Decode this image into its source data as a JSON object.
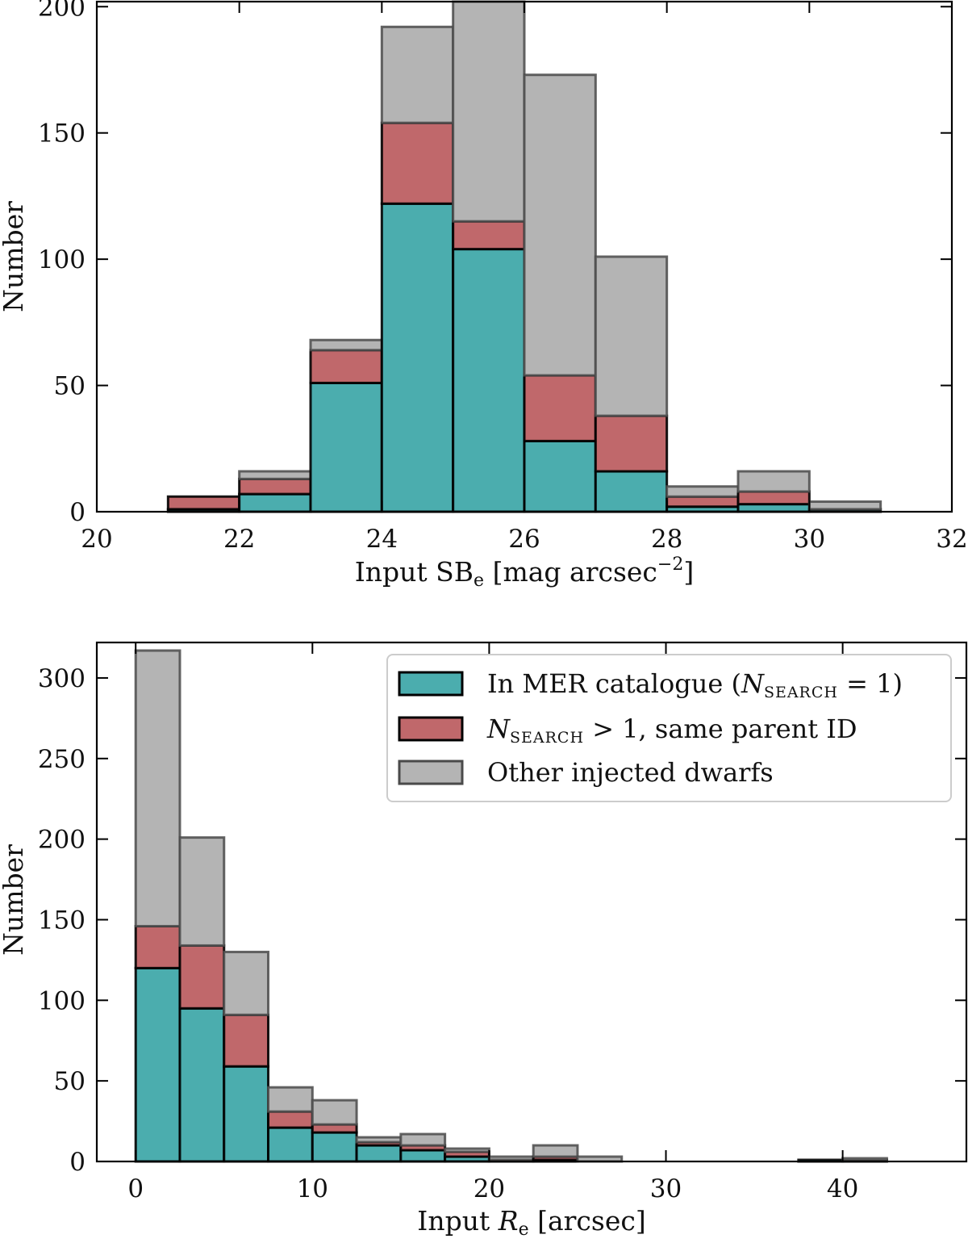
{
  "colors": {
    "in_mer": "#4badae",
    "multi": "#c0686b",
    "other": "#b4b4b4",
    "edge": "#000000",
    "other_edge": "#4a4a4a"
  },
  "chart_data": [
    {
      "type": "bar",
      "stacked": true,
      "title": "",
      "xlabel": "Input SB",
      "xlabel_sub": "e",
      "xlabel_unit_prefix": " [mag arcsec",
      "xlabel_unit_sup": "−2",
      "xlabel_unit_suffix": "]",
      "ylabel": "Number",
      "xlim": [
        20,
        32
      ],
      "ylim": [
        0,
        202
      ],
      "xticks": [
        20,
        22,
        24,
        26,
        28,
        30,
        32
      ],
      "xtick_labels": [
        "20",
        "22",
        "24",
        "26",
        "28",
        "30",
        "32"
      ],
      "yticks": [
        0,
        50,
        100,
        150,
        200
      ],
      "ytick_labels": [
        "0",
        "50",
        "100",
        "150",
        "200"
      ],
      "bin_edges": [
        21,
        22,
        23,
        24,
        25,
        26,
        27,
        28,
        29,
        30,
        31
      ],
      "series": [
        {
          "name": "In MER catalogue (N_SEARCH = 1)",
          "values": [
            1,
            7,
            51,
            122,
            104,
            28,
            16,
            2,
            3,
            1
          ]
        },
        {
          "name": "N_SEARCH > 1, same parent ID",
          "values": [
            5,
            6,
            13,
            32,
            11,
            26,
            22,
            4,
            5,
            0
          ]
        },
        {
          "name": "Other injected dwarfs",
          "values": [
            0,
            3,
            4,
            38,
            87,
            119,
            63,
            4,
            8,
            3
          ]
        }
      ]
    },
    {
      "type": "bar",
      "stacked": true,
      "title": "",
      "xlabel": "Input ",
      "xlabel_var": "R",
      "xlabel_sub": "e",
      "xlabel_unit": " [arcsec]",
      "ylabel": "Number",
      "xlim": [
        -2.2,
        47
      ],
      "ylim": [
        0,
        322
      ],
      "xticks": [
        0,
        10,
        20,
        30,
        40
      ],
      "xtick_labels": [
        "0",
        "10",
        "20",
        "30",
        "40"
      ],
      "yticks": [
        0,
        50,
        100,
        150,
        200,
        250,
        300
      ],
      "ytick_labels": [
        "0",
        "50",
        "100",
        "150",
        "200",
        "250",
        "300"
      ],
      "bin_edges": [
        0,
        2.5,
        5,
        7.5,
        10,
        12.5,
        15,
        17.5,
        20,
        22.5,
        25,
        27.5,
        30,
        32.5,
        35,
        37.5,
        40,
        42.5,
        45
      ],
      "series": [
        {
          "name": "In MER catalogue (N_SEARCH = 1)",
          "values": [
            120,
            95,
            59,
            21,
            18,
            10,
            7,
            3,
            0,
            1,
            0,
            0,
            0,
            0,
            0,
            1,
            1,
            0
          ]
        },
        {
          "name": "N_SEARCH > 1, same parent ID",
          "values": [
            26,
            39,
            32,
            10,
            5,
            2,
            3,
            3,
            1,
            2,
            0,
            0,
            0,
            0,
            0,
            0,
            0,
            0
          ]
        },
        {
          "name": "Other injected dwarfs",
          "values": [
            171,
            67,
            39,
            15,
            15,
            3,
            7,
            2,
            2,
            7,
            3,
            0,
            0,
            0,
            0,
            0,
            1,
            0
          ]
        }
      ],
      "legend": {
        "placement": "top-right",
        "entries": [
          {
            "main": "In MER catalogue (",
            "var": "N",
            "sub": "SEARCH",
            "tail": " = 1)"
          },
          {
            "main": "",
            "var": "N",
            "sub": "SEARCH",
            "tail": " > 1, same parent ID"
          },
          {
            "main": "Other injected dwarfs",
            "var": "",
            "sub": "",
            "tail": ""
          }
        ]
      }
    }
  ]
}
